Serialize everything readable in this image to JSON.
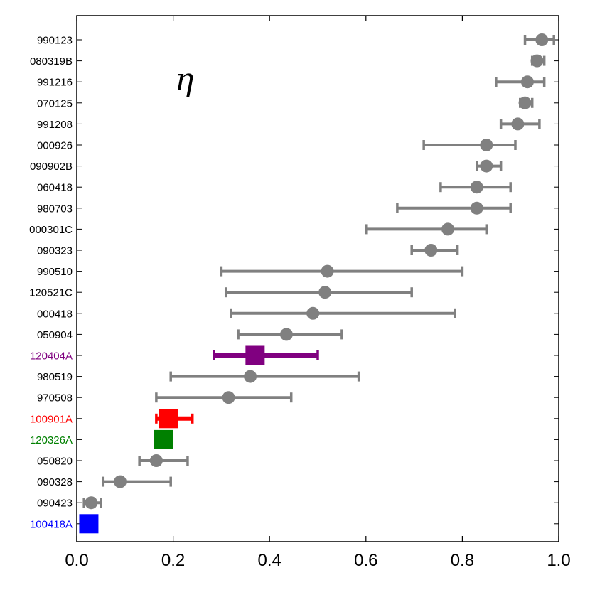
{
  "chart_data": {
    "type": "scatter",
    "title": "",
    "annotation": "η",
    "xlabel": "",
    "ylabel": "",
    "xlim": [
      0.0,
      1.0
    ],
    "x_ticks": [
      0.0,
      0.2,
      0.4,
      0.6,
      0.8,
      1.0
    ],
    "x_tick_labels": [
      "0.0",
      "0.2",
      "0.4",
      "0.6",
      "0.8",
      "1.0"
    ],
    "grid": false,
    "legend": "none",
    "colors": {
      "default": "#808080",
      "120404A": "#800080",
      "100901A": "#ff0000",
      "120326A": "#008000",
      "100418A": "#0000ff"
    },
    "points": [
      {
        "label": "990123",
        "value": 0.965,
        "low": 0.93,
        "high": 0.99,
        "marker": "circle",
        "color": "#808080"
      },
      {
        "label": "080319B",
        "value": 0.955,
        "low": 0.945,
        "high": 0.97,
        "marker": "circle",
        "color": "#808080"
      },
      {
        "label": "991216",
        "value": 0.935,
        "low": 0.87,
        "high": 0.97,
        "marker": "circle",
        "color": "#808080"
      },
      {
        "label": "070125",
        "value": 0.93,
        "low": 0.92,
        "high": 0.945,
        "marker": "circle",
        "color": "#808080"
      },
      {
        "label": "991208",
        "value": 0.915,
        "low": 0.88,
        "high": 0.96,
        "marker": "circle",
        "color": "#808080"
      },
      {
        "label": "000926",
        "value": 0.85,
        "low": 0.72,
        "high": 0.91,
        "marker": "circle",
        "color": "#808080"
      },
      {
        "label": "090902B",
        "value": 0.85,
        "low": 0.83,
        "high": 0.88,
        "marker": "circle",
        "color": "#808080"
      },
      {
        "label": "060418",
        "value": 0.83,
        "low": 0.755,
        "high": 0.9,
        "marker": "circle",
        "color": "#808080"
      },
      {
        "label": "980703",
        "value": 0.83,
        "low": 0.665,
        "high": 0.9,
        "marker": "circle",
        "color": "#808080"
      },
      {
        "label": "000301C",
        "value": 0.77,
        "low": 0.6,
        "high": 0.85,
        "marker": "circle",
        "color": "#808080"
      },
      {
        "label": "090323",
        "value": 0.735,
        "low": 0.695,
        "high": 0.79,
        "marker": "circle",
        "color": "#808080"
      },
      {
        "label": "990510",
        "value": 0.52,
        "low": 0.3,
        "high": 0.8,
        "marker": "circle",
        "color": "#808080"
      },
      {
        "label": "120521C",
        "value": 0.515,
        "low": 0.31,
        "high": 0.695,
        "marker": "circle",
        "color": "#808080"
      },
      {
        "label": "000418",
        "value": 0.49,
        "low": 0.32,
        "high": 0.785,
        "marker": "circle",
        "color": "#808080"
      },
      {
        "label": "050904",
        "value": 0.435,
        "low": 0.335,
        "high": 0.55,
        "marker": "circle",
        "color": "#808080"
      },
      {
        "label": "120404A",
        "value": 0.37,
        "low": 0.285,
        "high": 0.5,
        "marker": "square",
        "color": "#800080"
      },
      {
        "label": "980519",
        "value": 0.36,
        "low": 0.195,
        "high": 0.585,
        "marker": "circle",
        "color": "#808080"
      },
      {
        "label": "970508",
        "value": 0.315,
        "low": 0.165,
        "high": 0.445,
        "marker": "circle",
        "color": "#808080"
      },
      {
        "label": "100901A",
        "value": 0.19,
        "low": 0.165,
        "high": 0.24,
        "marker": "square",
        "color": "#ff0000"
      },
      {
        "label": "120326A",
        "value": 0.18,
        "low": null,
        "high": null,
        "marker": "square",
        "color": "#008000"
      },
      {
        "label": "050820",
        "value": 0.165,
        "low": 0.13,
        "high": 0.23,
        "marker": "circle",
        "color": "#808080"
      },
      {
        "label": "090328",
        "value": 0.09,
        "low": 0.055,
        "high": 0.195,
        "marker": "circle",
        "color": "#808080"
      },
      {
        "label": "090423",
        "value": 0.03,
        "low": 0.015,
        "high": 0.05,
        "marker": "circle",
        "color": "#808080"
      },
      {
        "label": "100418A",
        "value": 0.025,
        "low": null,
        "high": null,
        "marker": "square",
        "color": "#0000ff"
      }
    ]
  }
}
